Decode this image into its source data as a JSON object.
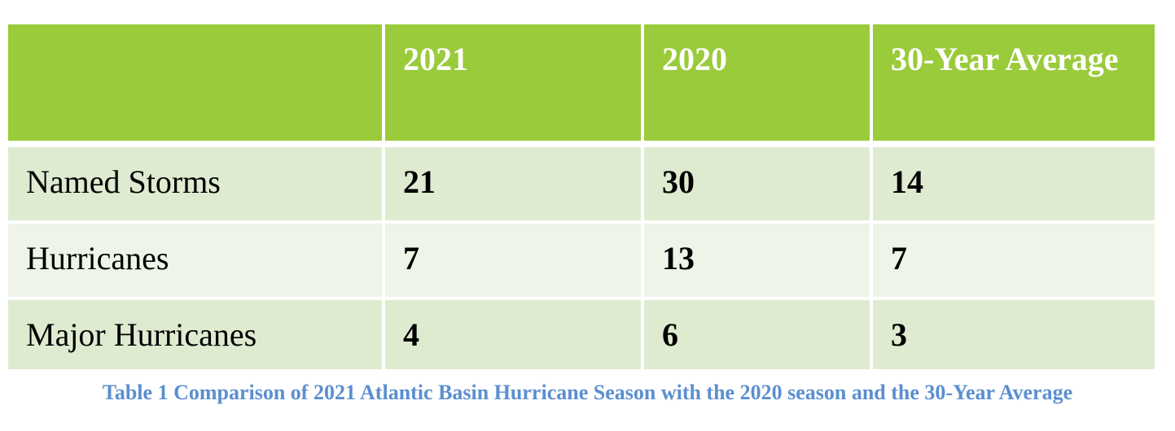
{
  "table": {
    "header": [
      "",
      "2021",
      "2020",
      "30-Year Average"
    ],
    "rows": [
      {
        "label": "Named Storms",
        "values": [
          "21",
          "30",
          "14"
        ]
      },
      {
        "label": "Hurricanes",
        "values": [
          "7",
          "13",
          "7"
        ]
      },
      {
        "label": "Major Hurricanes",
        "values": [
          "4",
          "6",
          "3"
        ]
      }
    ]
  },
  "caption": "Table 1 Comparison of 2021 Atlantic Basin Hurricane Season with the 2020 season and the 30-Year Average",
  "colors": {
    "header_bg": "#9acb3a",
    "header_text": "#ffffff",
    "row_odd_bg": "#deebd0",
    "row_even_bg": "#eef4e7",
    "caption_text": "#5b8fd0"
  }
}
